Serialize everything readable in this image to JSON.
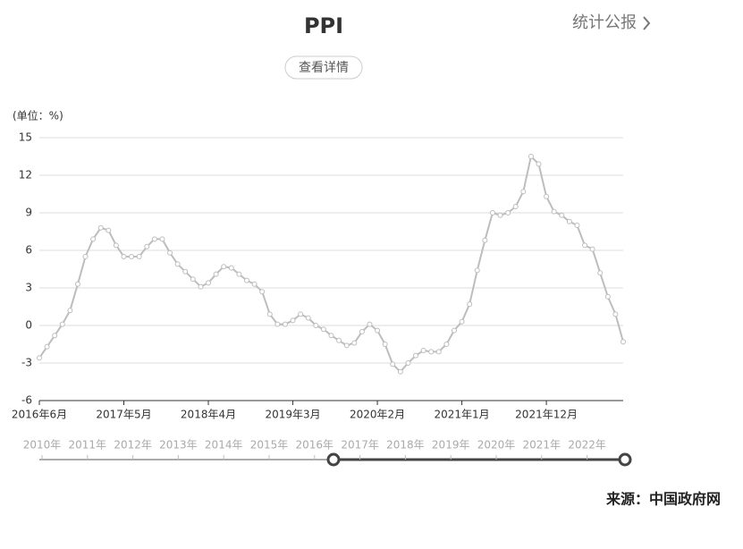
{
  "header": {
    "title": "PPI",
    "link": "统计公报",
    "button": "查看详情"
  },
  "chart_data": {
    "type": "line",
    "y_label": "(单位：%)",
    "categories": [
      "2016年6月",
      null,
      null,
      null,
      null,
      null,
      null,
      null,
      null,
      null,
      null,
      "2017年5月",
      null,
      null,
      null,
      null,
      null,
      null,
      null,
      null,
      null,
      null,
      "2018年4月",
      null,
      null,
      null,
      null,
      null,
      null,
      null,
      null,
      null,
      null,
      "2019年3月",
      null,
      null,
      null,
      null,
      null,
      null,
      null,
      null,
      null,
      null,
      "2020年2月",
      null,
      null,
      null,
      null,
      null,
      null,
      null,
      null,
      null,
      null,
      "2021年1月",
      null,
      null,
      null,
      null,
      null,
      null,
      null,
      null,
      null,
      null,
      "2021年12月",
      null,
      null,
      null,
      null,
      null,
      null,
      null,
      null,
      null,
      null
    ],
    "values": [
      -2.6,
      -1.7,
      -0.8,
      0.1,
      1.2,
      3.3,
      5.5,
      6.9,
      7.8,
      7.6,
      6.4,
      5.5,
      5.5,
      5.5,
      6.3,
      6.9,
      6.9,
      5.8,
      4.9,
      4.3,
      3.7,
      3.1,
      3.4,
      4.1,
      4.7,
      4.6,
      4.1,
      3.6,
      3.3,
      2.7,
      0.9,
      0.1,
      0.1,
      0.4,
      0.9,
      0.6,
      0.0,
      -0.3,
      -0.8,
      -1.2,
      -1.6,
      -1.4,
      -0.5,
      0.1,
      -0.4,
      -1.5,
      -3.1,
      -3.7,
      -3.0,
      -2.4,
      -2.0,
      -2.1,
      -2.1,
      -1.5,
      -0.4,
      0.3,
      1.7,
      4.4,
      6.8,
      9.0,
      8.8,
      9.0,
      9.5,
      10.7,
      13.5,
      12.9,
      10.3,
      9.1,
      8.8,
      8.3,
      8.0,
      6.4,
      6.1,
      4.2,
      2.3,
      0.9,
      -1.3
    ],
    "color": "#bdbdbd",
    "ylim": [
      -6,
      15
    ],
    "yticks": [
      15,
      12,
      9,
      6,
      3,
      0,
      -3,
      -6
    ],
    "grid": true
  },
  "slider": {
    "labels": [
      "2010年",
      "2011年",
      "2012年",
      "2013年",
      "2014年",
      "2015年",
      "2016年",
      "2017年",
      "2018年",
      "2019年",
      "2020年",
      "2021年",
      "2022年"
    ]
  },
  "footer": {
    "source": "来源：中国政府网"
  }
}
